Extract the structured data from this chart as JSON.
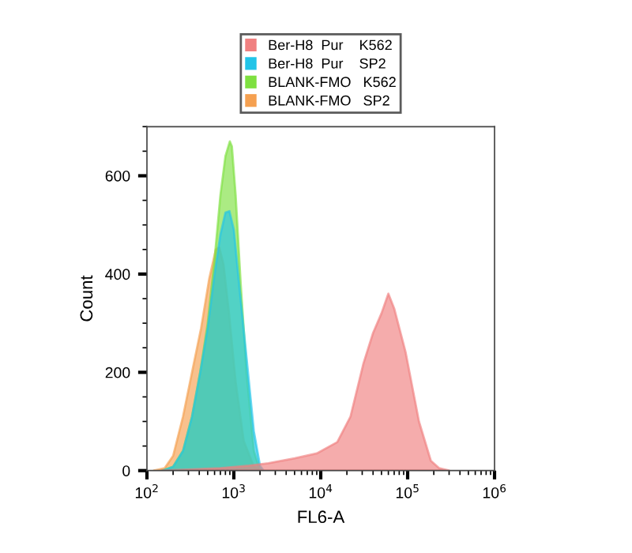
{
  "chart_data": {
    "type": "area",
    "xlabel": "FL6-A",
    "ylabel": "Count",
    "log": "x",
    "xlim": [
      100,
      1000000
    ],
    "ylim": [
      0,
      700
    ],
    "xticks": [
      {
        "value": 100,
        "label": "10$^{2}$"
      },
      {
        "value": 1000,
        "label": "10$^{3}$"
      },
      {
        "value": 10000,
        "label": "10$^{4}$"
      },
      {
        "value": 100000,
        "label": "10$^{5}$"
      },
      {
        "value": 1000000,
        "label": "10$^{6}$"
      }
    ],
    "yticks": [
      0,
      200,
      400,
      600
    ],
    "grid": false,
    "legend": "top",
    "series": [
      {
        "name": "BLANK-FMO   SP2",
        "color": "#f5a050",
        "x": [
          120,
          160,
          200,
          260,
          330,
          420,
          520,
          620,
          680,
          760,
          880,
          1050,
          1300,
          1700,
          2100
        ],
        "values": [
          0,
          5,
          30,
          110,
          200,
          290,
          390,
          450,
          454,
          420,
          320,
          180,
          60,
          8,
          0
        ]
      },
      {
        "name": "BLANK-FMO   K562",
        "color": "#7ee040",
        "x": [
          150,
          200,
          260,
          330,
          410,
          500,
          600,
          700,
          800,
          900,
          950,
          1050,
          1200,
          1400,
          1700,
          2000
        ],
        "values": [
          0,
          8,
          40,
          110,
          200,
          300,
          430,
          560,
          640,
          670,
          660,
          560,
          380,
          200,
          40,
          0
        ]
      },
      {
        "name": "Ber-H8  Pur    SP2",
        "color": "#22c4e8",
        "x": [
          150,
          200,
          260,
          330,
          410,
          500,
          600,
          700,
          800,
          890,
          1000,
          1150,
          1400,
          1700,
          2000,
          2200
        ],
        "values": [
          0,
          8,
          40,
          110,
          200,
          290,
          400,
          480,
          525,
          528,
          490,
          380,
          230,
          80,
          10,
          0
        ]
      },
      {
        "name": "Ber-H8  Pur    K562",
        "color": "#f08080",
        "x": [
          150,
          700,
          1500,
          2500,
          5000,
          9000,
          15500,
          22000,
          31000,
          40000,
          50000,
          60000,
          70000,
          95000,
          135000,
          185000,
          230000,
          300000
        ],
        "values": [
          0,
          5,
          10,
          15,
          25,
          35,
          58,
          110,
          218,
          280,
          320,
          360,
          330,
          240,
          100,
          20,
          5,
          0
        ]
      }
    ]
  }
}
